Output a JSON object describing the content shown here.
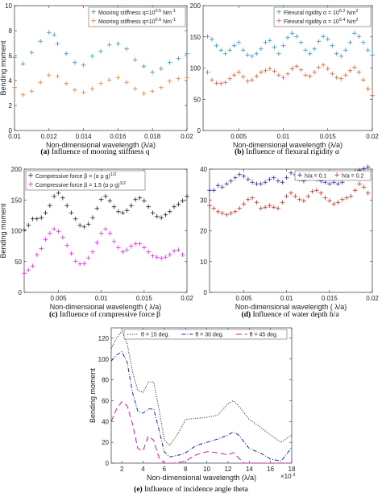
{
  "chart_data": [
    {
      "id": "a",
      "type": "scatter",
      "caption_label": "(a)",
      "caption_text": "Influence of mooring stiffness q",
      "xlabel": "Non-dimensional wavelength (λ/a)",
      "ylabel": "Bending moment",
      "xlim": [
        0.01,
        0.02
      ],
      "ylim": [
        0,
        10
      ],
      "xticks": [
        "0.01",
        "0.012",
        "0.014",
        "0.016",
        "0.018",
        "0.02"
      ],
      "yticks": [
        "0",
        "2",
        "4",
        "6",
        "8",
        "10"
      ],
      "grid": false,
      "legend": "top-right",
      "series": [
        {
          "name": "Mooring stiffness q=10^0.5 Nm^-1",
          "color": "#2f8fc4",
          "marker": "+",
          "x": [
            0.01,
            0.0105,
            0.011,
            0.0115,
            0.012,
            0.0123,
            0.0125,
            0.013,
            0.0135,
            0.014,
            0.0145,
            0.015,
            0.0155,
            0.016,
            0.0165,
            0.017,
            0.0175,
            0.018,
            0.0185,
            0.019,
            0.0195,
            0.02
          ],
          "y": [
            5.8,
            5.3,
            6.2,
            7.1,
            7.8,
            7.6,
            6.9,
            6.1,
            5.4,
            5.2,
            5.9,
            6.3,
            6.8,
            6.9,
            6.5,
            5.6,
            5.1,
            4.6,
            4.9,
            5.4,
            5.7,
            6.1
          ]
        },
        {
          "name": "Mooring stiffness q=10^0.6 Nm^-1",
          "color": "#e07a2e",
          "marker": "+",
          "x": [
            0.01,
            0.0105,
            0.011,
            0.0115,
            0.012,
            0.0125,
            0.013,
            0.0135,
            0.014,
            0.0145,
            0.015,
            0.0155,
            0.016,
            0.0165,
            0.017,
            0.0175,
            0.018,
            0.0185,
            0.019,
            0.0195,
            0.02
          ],
          "y": [
            3.4,
            2.8,
            3.1,
            3.8,
            4.4,
            4.3,
            3.7,
            3.2,
            3.0,
            3.3,
            3.7,
            4.0,
            4.2,
            3.8,
            3.3,
            2.9,
            3.1,
            3.4,
            3.9,
            4.1,
            4.2
          ]
        }
      ]
    },
    {
      "id": "b",
      "type": "scatter",
      "caption_label": "(b)",
      "caption_text": "Influence of flexural rigidity α",
      "xlabel": "Non-dimensional wavelength (λ/a)",
      "ylabel": "",
      "xlim": [
        0.001,
        0.02
      ],
      "ylim": [
        0,
        200
      ],
      "xticks_at": [
        0.005,
        0.01,
        0.015,
        0.02
      ],
      "xticks": [
        "0.005",
        "0.01",
        "0.015",
        "0.02"
      ],
      "yticks": [
        "0",
        "50",
        "100",
        "150",
        "200"
      ],
      "grid": false,
      "legend": "top-right",
      "series": [
        {
          "name": "Flexural rigidity α = 10^5.2 Nm^2",
          "color": "#2f8fc4",
          "marker": "+",
          "x": [
            0.0015,
            0.002,
            0.0025,
            0.003,
            0.0035,
            0.004,
            0.0045,
            0.005,
            0.0055,
            0.006,
            0.0065,
            0.007,
            0.0075,
            0.008,
            0.0085,
            0.009,
            0.0095,
            0.01,
            0.0105,
            0.011,
            0.0115,
            0.012,
            0.0125,
            0.013,
            0.0135,
            0.014,
            0.0145,
            0.015,
            0.0155,
            0.016,
            0.0165,
            0.017,
            0.0175,
            0.018,
            0.0185,
            0.019,
            0.0195,
            0.02
          ],
          "y": [
            150,
            145,
            135,
            128,
            122,
            128,
            135,
            140,
            128,
            120,
            118,
            122,
            130,
            140,
            143,
            132,
            122,
            135,
            148,
            155,
            150,
            140,
            128,
            122,
            130,
            142,
            150,
            145,
            135,
            122,
            118,
            128,
            140,
            155,
            150,
            140,
            128,
            120
          ]
        },
        {
          "name": "Flexural rigidity α = 10^5.4 Nm^2",
          "color": "#e0522e",
          "marker": "+",
          "x": [
            0.0015,
            0.002,
            0.0025,
            0.003,
            0.0035,
            0.004,
            0.0045,
            0.005,
            0.0055,
            0.006,
            0.0065,
            0.007,
            0.0075,
            0.008,
            0.0085,
            0.009,
            0.0095,
            0.01,
            0.0105,
            0.011,
            0.0115,
            0.012,
            0.0125,
            0.013,
            0.0135,
            0.014,
            0.0145,
            0.015,
            0.0155,
            0.016,
            0.0165,
            0.017,
            0.0175,
            0.018,
            0.0185,
            0.019,
            0.0195,
            0.02
          ],
          "y": [
            92,
            80,
            75,
            74,
            76,
            82,
            88,
            92,
            85,
            78,
            80,
            86,
            92,
            95,
            98,
            94,
            88,
            84,
            90,
            98,
            102,
            96,
            88,
            86,
            92,
            100,
            104,
            98,
            90,
            84,
            82,
            88,
            95,
            100,
            92,
            80,
            66,
            55
          ]
        }
      ]
    },
    {
      "id": "c",
      "type": "scatter",
      "caption_label": "(c)",
      "caption_text": "Influence of compressive force β",
      "xlabel": "Non-dimensional wavelength ( λ/a)",
      "ylabel": "Bending moment",
      "xlim": [
        0.001,
        0.02
      ],
      "ylim": [
        0,
        200
      ],
      "xticks_at": [
        0.005,
        0.01,
        0.015,
        0.02
      ],
      "xticks": [
        "0.005",
        "0.01",
        "0.015",
        "0.02"
      ],
      "yticks": [
        "0",
        "50",
        "100",
        "150",
        "200"
      ],
      "grid": false,
      "legend": "top-left",
      "series": [
        {
          "name": "Compressive force β = (α ρ g)^1/2",
          "color": "#111111",
          "marker": "+",
          "x": [
            0.001,
            0.0015,
            0.002,
            0.0025,
            0.003,
            0.0035,
            0.004,
            0.0045,
            0.005,
            0.0055,
            0.006,
            0.0065,
            0.007,
            0.0075,
            0.008,
            0.0085,
            0.009,
            0.0095,
            0.01,
            0.0105,
            0.011,
            0.0115,
            0.012,
            0.0125,
            0.013,
            0.0135,
            0.014,
            0.0145,
            0.015,
            0.0155,
            0.016,
            0.0165,
            0.017,
            0.0175,
            0.018,
            0.0185,
            0.019,
            0.0195,
            0.02
          ],
          "y": [
            100,
            108,
            118,
            118,
            120,
            128,
            140,
            155,
            160,
            152,
            140,
            128,
            118,
            108,
            105,
            110,
            120,
            135,
            150,
            155,
            148,
            138,
            130,
            128,
            132,
            140,
            150,
            152,
            148,
            138,
            128,
            122,
            120,
            125,
            130,
            138,
            142,
            148,
            155
          ]
        },
        {
          "name": "Compressive force β = 1.5 (α ρ g)^1/2",
          "color": "#e020e0",
          "marker": "+",
          "x": [
            0.001,
            0.0015,
            0.002,
            0.0025,
            0.003,
            0.0035,
            0.004,
            0.0045,
            0.005,
            0.0055,
            0.006,
            0.0065,
            0.007,
            0.0075,
            0.008,
            0.0085,
            0.009,
            0.0095,
            0.01,
            0.0105,
            0.011,
            0.0115,
            0.012,
            0.0125,
            0.013,
            0.0135,
            0.014,
            0.0145,
            0.015,
            0.0155,
            0.016,
            0.0165,
            0.017,
            0.0175,
            0.018,
            0.0185,
            0.019,
            0.0195
          ],
          "y": [
            30,
            35,
            42,
            60,
            70,
            85,
            95,
            102,
            98,
            88,
            75,
            62,
            50,
            45,
            46,
            55,
            65,
            80,
            95,
            102,
            95,
            82,
            72,
            65,
            68,
            74,
            78,
            78,
            72,
            65,
            58,
            56,
            54,
            56,
            60,
            66,
            68,
            60
          ]
        }
      ]
    },
    {
      "id": "d",
      "type": "scatter",
      "caption_label": "(d)",
      "caption_text": "Influence of water depth h/a",
      "xlabel": "Non-dimensional wavelength ( λ/a)",
      "ylabel": "",
      "xlim": [
        0.001,
        0.02
      ],
      "ylim": [
        0,
        40
      ],
      "xticks_at": [
        0.005,
        0.01,
        0.015,
        0.02
      ],
      "xticks": [
        "0.005",
        "0.01",
        "0.015",
        "0.02"
      ],
      "yticks": [
        "0",
        "10",
        "20",
        "30",
        "40"
      ],
      "grid": false,
      "legend": "top-right",
      "series": [
        {
          "name": "h/a = 0.1",
          "color": "#2020a0",
          "marker": "+",
          "x": [
            0.001,
            0.0015,
            0.002,
            0.0025,
            0.003,
            0.0035,
            0.004,
            0.0045,
            0.005,
            0.0055,
            0.006,
            0.0065,
            0.007,
            0.0075,
            0.008,
            0.0085,
            0.009,
            0.0095,
            0.01,
            0.0105,
            0.011,
            0.0115,
            0.012,
            0.0125,
            0.013,
            0.0135,
            0.014,
            0.0145,
            0.015,
            0.0155,
            0.016,
            0.0165,
            0.017,
            0.0175,
            0.018,
            0.0185,
            0.019,
            0.0195
          ],
          "y": [
            33,
            33,
            34.5,
            34,
            35,
            36,
            37,
            38,
            37.5,
            36.5,
            35.5,
            35,
            35,
            35.5,
            36.5,
            37,
            36,
            35.5,
            37,
            38.5,
            38,
            36.5,
            36,
            37,
            37.5,
            36.5,
            36,
            35.5,
            35,
            35.5,
            35,
            35.5,
            37,
            38,
            39,
            39.5,
            40,
            40.5
          ]
        },
        {
          "name": "h/a = 0.2",
          "color": "#c0281c",
          "marker": "+",
          "x": [
            0.001,
            0.0015,
            0.002,
            0.0025,
            0.003,
            0.0035,
            0.004,
            0.0045,
            0.005,
            0.0055,
            0.006,
            0.0065,
            0.007,
            0.0075,
            0.008,
            0.0085,
            0.009,
            0.0095,
            0.01,
            0.0105,
            0.011,
            0.0115,
            0.012,
            0.0125,
            0.013,
            0.0135,
            0.014,
            0.0145,
            0.015,
            0.0155,
            0.016,
            0.0165,
            0.017,
            0.0175,
            0.018,
            0.0185,
            0.019,
            0.0195
          ],
          "y": [
            28,
            27,
            26,
            25.5,
            25,
            25.5,
            26,
            27,
            28.5,
            30,
            30.5,
            29,
            27,
            27.5,
            28,
            27.5,
            27,
            29,
            31,
            32,
            31,
            30,
            29.5,
            31,
            32.5,
            33,
            32,
            30.5,
            29.5,
            28.5,
            29,
            30,
            30.5,
            31,
            33,
            35,
            34,
            32
          ]
        }
      ]
    },
    {
      "id": "e",
      "type": "line",
      "caption_label": "(e)",
      "caption_text": "Influence of incidence angle theta",
      "xlabel": "Non-dimensional wavelength (λ/a)",
      "ylabel": "Bending moment",
      "xlim": [
        1,
        18
      ],
      "ylim": [
        0,
        130
      ],
      "xticks_at": [
        2,
        4,
        6,
        8,
        10,
        12,
        14,
        16,
        18
      ],
      "xticks": [
        "2",
        "4",
        "6",
        "8",
        "10",
        "12",
        "14",
        "16",
        "18"
      ],
      "yticks_at": [
        0,
        20,
        40,
        60,
        80,
        100,
        120
      ],
      "yticks": [
        "0",
        "20",
        "40",
        "60",
        "80",
        "100",
        "120"
      ],
      "x_exponent": "×10^-3",
      "grid": false,
      "legend": "top",
      "series": [
        {
          "name": "θ = 15 deg.",
          "color": "#333333",
          "dash": "1.2 1.6",
          "x": [
            1,
            1.5,
            2,
            2.5,
            3,
            3.5,
            4,
            4.5,
            5,
            5.5,
            6,
            6.5,
            7,
            7.5,
            8,
            9,
            10,
            11,
            12,
            12.5,
            13,
            14,
            15,
            16,
            17,
            18
          ],
          "y": [
            110,
            120,
            127,
            115,
            88,
            70,
            68,
            78,
            78,
            52,
            22,
            17,
            24,
            32,
            42,
            43,
            44,
            46,
            57,
            60,
            55,
            42,
            35,
            27,
            20,
            27
          ]
        },
        {
          "name": "θ = 30 deg.",
          "color": "#1a28a0",
          "dash": "5 2 1 2",
          "x": [
            1,
            1.5,
            2,
            2.5,
            3,
            3.5,
            4,
            4.5,
            5,
            5.5,
            6,
            6.5,
            7,
            7.5,
            8,
            9,
            10,
            11,
            12,
            12.5,
            13,
            14,
            15,
            16,
            17,
            18
          ],
          "y": [
            98,
            104,
            107,
            97,
            68,
            50,
            48,
            52,
            52,
            32,
            11,
            6,
            7,
            8,
            10,
            17,
            20,
            23,
            27,
            30,
            27,
            14,
            10,
            4,
            2,
            15
          ]
        },
        {
          "name": "θ = 45 deg.",
          "color": "#d01ab0",
          "dash": "7 4",
          "x": [
            1,
            1.5,
            2,
            2.5,
            3,
            3.5,
            4,
            4.5,
            5,
            5.5,
            6,
            6.5,
            7,
            8,
            9,
            10,
            11,
            12,
            12.5,
            13,
            13.5,
            14,
            15,
            16,
            17,
            18
          ],
          "y": [
            40,
            52,
            59,
            55,
            38,
            14,
            12,
            26,
            22,
            5,
            0,
            0,
            0,
            2,
            8,
            11,
            10,
            8,
            10,
            5,
            0,
            0,
            0,
            0,
            0,
            0
          ]
        }
      ]
    }
  ]
}
